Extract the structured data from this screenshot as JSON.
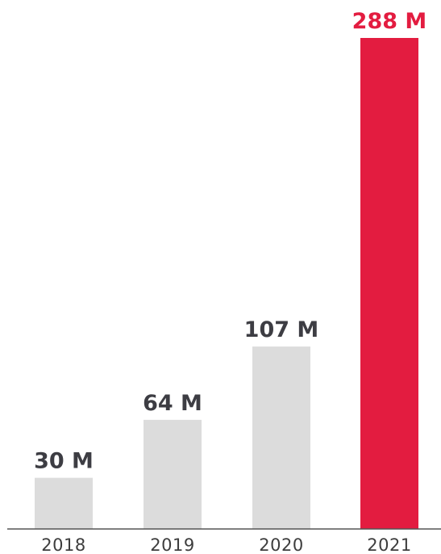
{
  "chart_data": {
    "type": "bar",
    "categories": [
      "2018",
      "2019",
      "2020",
      "2021"
    ],
    "values": [
      30,
      64,
      107,
      288
    ],
    "value_labels": [
      "30 M",
      "64 M",
      "107 M",
      "288 M"
    ],
    "highlight_index": 3,
    "title": "",
    "xlabel": "",
    "ylabel": "",
    "ylim": [
      0,
      288
    ],
    "grid": false,
    "legend": "none"
  },
  "colors": {
    "bar": "#dcdcdc",
    "bar_highlight": "#e31c40",
    "label": "#3d3d43",
    "label_highlight": "#e31c40",
    "axis": "#555555"
  }
}
